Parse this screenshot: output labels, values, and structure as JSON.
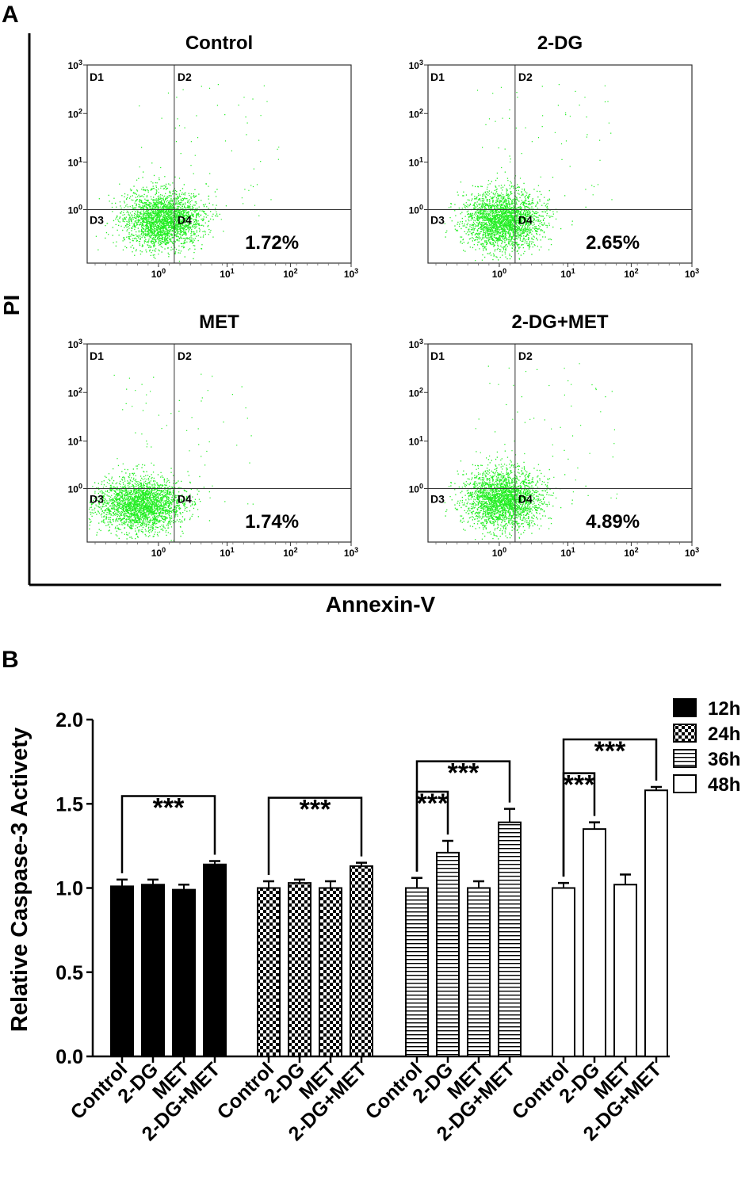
{
  "panel_a": {
    "letter": "A",
    "y_label": "PI",
    "x_label": "Annexin-V",
    "quadrant_labels": [
      "D1",
      "D2",
      "D3",
      "D4"
    ],
    "tick_labels": [
      "10^0",
      "10^1",
      "10^2",
      "10^3"
    ],
    "point_color": "#22ee22",
    "plots": [
      {
        "title": "Control",
        "percentage": "1.72%",
        "center": [
          0.45,
          0.3
        ],
        "spread": [
          0.22,
          0.13
        ],
        "events": 2600
      },
      {
        "title": "2-DG",
        "percentage": "2.65%",
        "center": [
          0.45,
          0.3
        ],
        "spread": [
          0.22,
          0.13
        ],
        "events": 2600
      },
      {
        "title": "MET",
        "percentage": "1.74%",
        "center": [
          0.28,
          0.25
        ],
        "spread": [
          0.24,
          0.12
        ],
        "events": 2600
      },
      {
        "title": "2-DG+MET",
        "percentage": "4.89%",
        "center": [
          0.45,
          0.3
        ],
        "spread": [
          0.22,
          0.13
        ],
        "events": 2600
      }
    ]
  },
  "panel_b": {
    "letter": "B"
  },
  "chart_data": {
    "type": "bar",
    "title": "",
    "ylabel": "Relative Caspase-3 Activety",
    "xlabel": "",
    "ylim": [
      0,
      2.0
    ],
    "yticks": [
      "0.0",
      "0.5",
      "1.0",
      "1.5",
      "2.0"
    ],
    "categories": [
      "Control",
      "2-DG",
      "MET",
      "2-DG+MET"
    ],
    "series": [
      {
        "name": "12h",
        "pattern": "solid",
        "values": [
          1.01,
          1.02,
          0.99,
          1.14
        ],
        "errors": [
          0.04,
          0.03,
          0.03,
          0.02
        ]
      },
      {
        "name": "24h",
        "pattern": "checkerboard",
        "values": [
          1.0,
          1.03,
          1.0,
          1.13
        ],
        "errors": [
          0.04,
          0.02,
          0.04,
          0.02
        ]
      },
      {
        "name": "36h",
        "pattern": "horizontal",
        "values": [
          1.0,
          1.21,
          1.0,
          1.39
        ],
        "errors": [
          0.06,
          0.07,
          0.04,
          0.08
        ]
      },
      {
        "name": "48h",
        "pattern": "open",
        "values": [
          1.0,
          1.35,
          1.02,
          1.58
        ],
        "errors": [
          0.03,
          0.04,
          0.06,
          0.02
        ]
      }
    ],
    "significance": [
      {
        "series": 0,
        "from": 0,
        "to": 3,
        "label": "***"
      },
      {
        "series": 1,
        "from": 0,
        "to": 3,
        "label": "***"
      },
      {
        "series": 2,
        "from": 0,
        "to": 3,
        "label": "***"
      },
      {
        "series": 2,
        "from": 0,
        "to": 1,
        "label": "***"
      },
      {
        "series": 3,
        "from": 0,
        "to": 3,
        "label": "***"
      },
      {
        "series": 3,
        "from": 0,
        "to": 1,
        "label": "***"
      }
    ],
    "legend_position": "top-right"
  }
}
